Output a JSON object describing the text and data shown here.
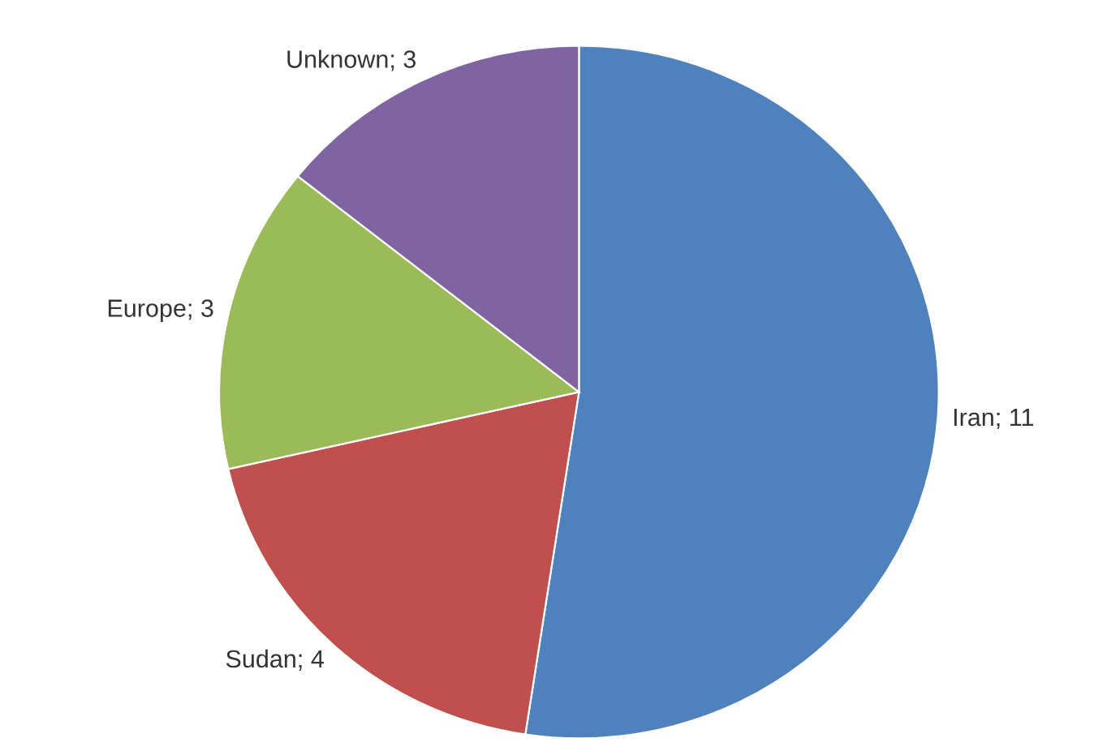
{
  "chart_data": {
    "type": "pie",
    "categories": [
      "Iran; 11",
      "Sudan; 4",
      "Europe; 3",
      "Unknown; 3"
    ],
    "values": [
      11,
      4,
      3,
      3
    ],
    "colors": [
      "#4f81bd",
      "#c0504d",
      "#9bbb59",
      "#8064a2"
    ]
  }
}
